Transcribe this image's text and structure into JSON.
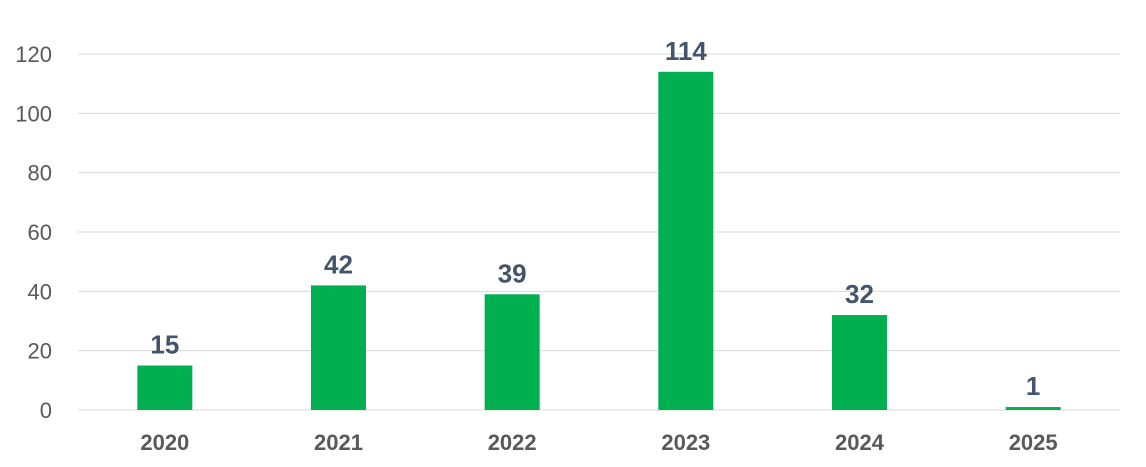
{
  "chart_data": {
    "type": "bar",
    "title": "",
    "xlabel": "",
    "ylabel": "",
    "categories": [
      "2020",
      "2021",
      "2022",
      "2023",
      "2024",
      "2025"
    ],
    "values": [
      15,
      42,
      39,
      114,
      32,
      1
    ],
    "data_labels": [
      "15",
      "42",
      "39",
      "114",
      "32",
      "1"
    ],
    "ylim": [
      0,
      120
    ],
    "yticks": [
      0,
      20,
      40,
      60,
      80,
      100,
      120
    ],
    "ytick_labels": [
      "0",
      "20",
      "40",
      "60",
      "80",
      "100",
      "120"
    ],
    "grid": true,
    "legend": "none",
    "colors": {
      "bar": "#00b050",
      "data_label": "#44546a",
      "tick_label": "#595959",
      "grid": "#d9d9d9"
    }
  }
}
